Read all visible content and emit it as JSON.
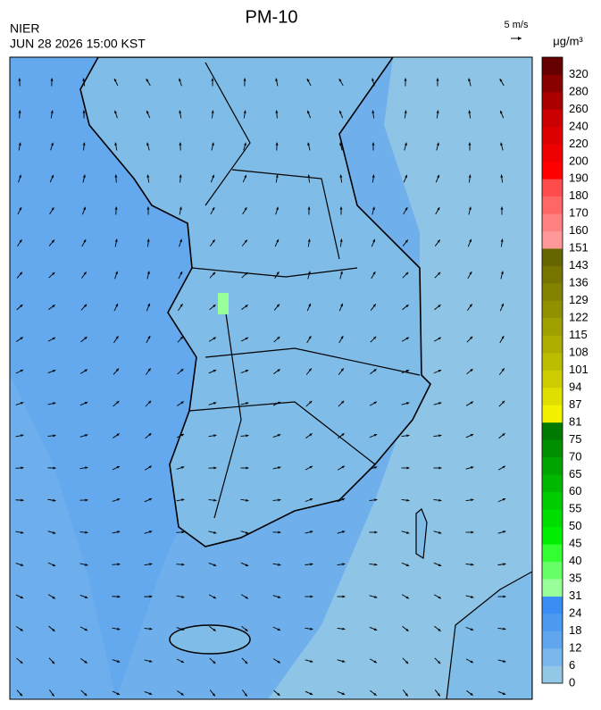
{
  "header": {
    "title": "PM-10",
    "source": "NIER",
    "datetime": "JUN 28 2026 15:00 KST",
    "wind_scale": "5 m/s",
    "unit": "μg/m³"
  },
  "colorbar": {
    "labels": [
      0,
      6,
      12,
      18,
      24,
      31,
      35,
      40,
      45,
      50,
      55,
      60,
      65,
      70,
      75,
      81,
      87,
      94,
      101,
      108,
      115,
      122,
      129,
      136,
      143,
      151,
      160,
      170,
      180,
      190,
      200,
      220,
      240,
      260,
      280,
      320
    ],
    "colors": [
      "#92c7e6",
      "#78b6ec",
      "#60a6ef",
      "#4c9bf1",
      "#3a8ef3",
      "#99ff99",
      "#66ff66",
      "#33ff33",
      "#00ee00",
      "#00dd00",
      "#00cc00",
      "#00b800",
      "#00a400",
      "#008f00",
      "#007a00",
      "#f2f200",
      "#dfdf00",
      "#cccc00",
      "#bdbd00",
      "#aeae00",
      "#a0a000",
      "#919100",
      "#838300",
      "#757500",
      "#666600",
      "#ff9999",
      "#ff8080",
      "#ff6666",
      "#ff4d4d",
      "#ff0000",
      "#ee0000",
      "#dd0000",
      "#cc0000",
      "#aa0000",
      "#880000",
      "#660000"
    ]
  }
}
